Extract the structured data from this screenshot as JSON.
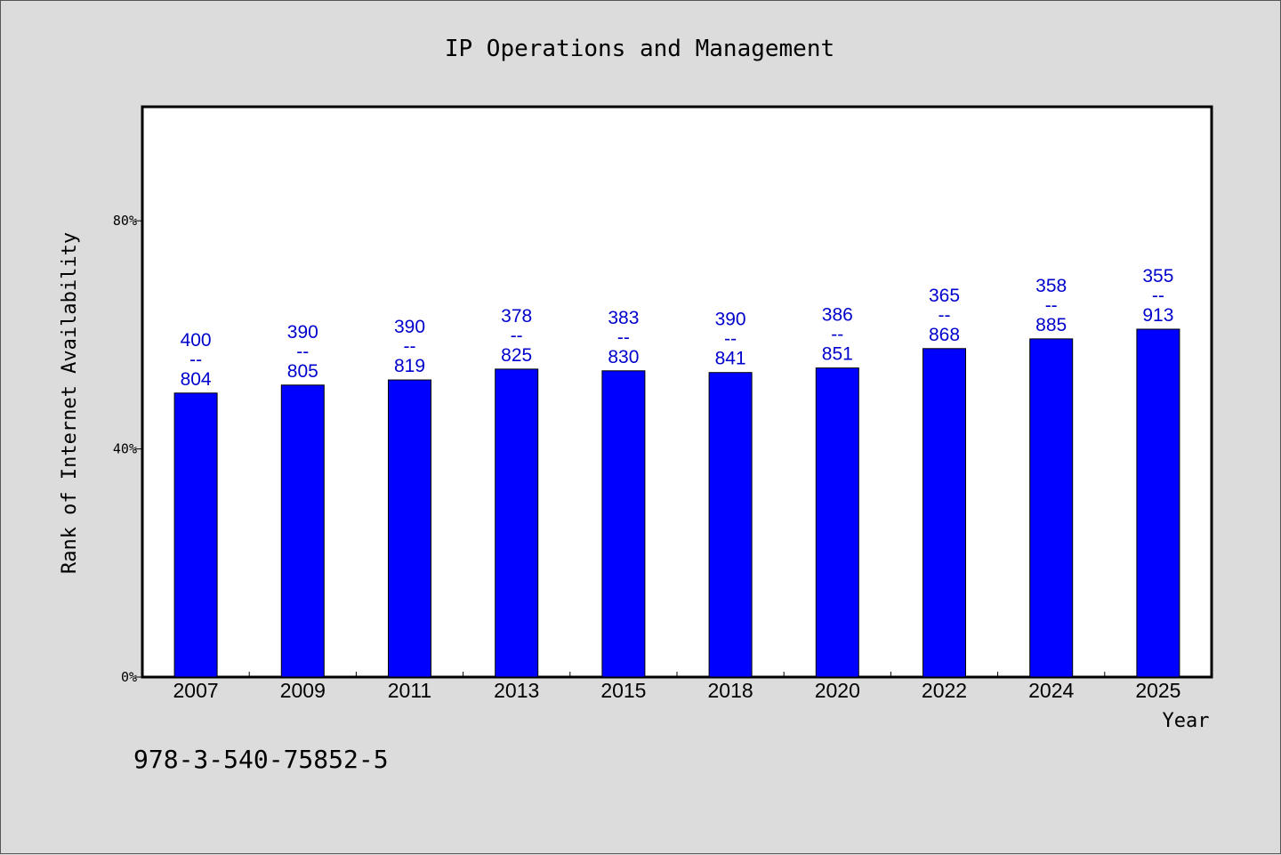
{
  "chart_data": {
    "type": "bar",
    "title": "IP Operations and Management",
    "xlabel": "Year",
    "ylabel": "Rank of Internet Availability",
    "categories": [
      "2007",
      "2009",
      "2011",
      "2013",
      "2015",
      "2018",
      "2020",
      "2022",
      "2024",
      "2025"
    ],
    "values": [
      49.8,
      51.2,
      52.1,
      54.0,
      53.7,
      53.4,
      54.2,
      57.6,
      59.3,
      61.0
    ],
    "labels_top": [
      "400",
      "390",
      "390",
      "378",
      "383",
      "390",
      "386",
      "365",
      "358",
      "355"
    ],
    "labels_bottom": [
      "804",
      "805",
      "819",
      "825",
      "830",
      "841",
      "851",
      "868",
      "885",
      "913"
    ],
    "label_separator": "--",
    "ylim": [
      0,
      100
    ],
    "yticks": [
      0,
      40,
      80
    ],
    "ytick_labels": [
      "0%",
      "40%",
      "80%"
    ],
    "grid": false,
    "bar_color": "#0000ff",
    "label_color": "#0000cc"
  },
  "footnote": "978-3-540-75852-5"
}
